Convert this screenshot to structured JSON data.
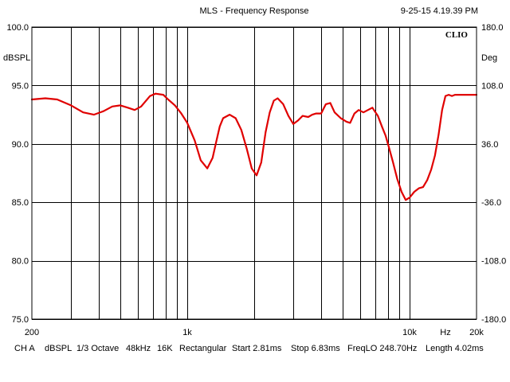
{
  "header": {
    "title": "MLS - Frequency Response",
    "timestamp": "9-25-15 4.19.39 PM"
  },
  "footer": {
    "items": [
      "CH A",
      "dBSPL",
      "1/3 Octave",
      "48kHz",
      "16K",
      "Rectangular",
      "Start 2.81ms",
      "Stop 6.83ms",
      "FreqLO 248.70Hz",
      "Length 4.02ms"
    ]
  },
  "logo_text": "CLIO",
  "colors": {
    "curve": "#e00000",
    "grid": "#000000",
    "background": "#ffffff"
  },
  "chart_data": {
    "type": "line",
    "x_scale": "log",
    "xlim": [
      200,
      20000
    ],
    "ylim": [
      75,
      100
    ],
    "y2lim": [
      -180,
      180
    ],
    "ylabel": "dBSPL",
    "y2label": "Deg",
    "grid": true,
    "x_tick_labels": [
      {
        "value": 200,
        "label": "200"
      },
      {
        "value": 1000,
        "label": "1k"
      },
      {
        "value": 10000,
        "label": "10k"
      },
      {
        "value": 14500,
        "label": "Hz"
      },
      {
        "value": 20000,
        "label": "20k"
      }
    ],
    "y_tick_labels": [
      "100.0",
      "95.0",
      "90.0",
      "85.0",
      "80.0",
      "75.0"
    ],
    "y_tick_values": [
      100,
      95,
      90,
      85,
      80,
      75
    ],
    "y2_tick_labels": [
      "180.0",
      "108.0",
      "36.0",
      "-36.0",
      "-108.0",
      "-180.0"
    ],
    "series": [
      {
        "color": "#e00000",
        "x": [
          200,
          230,
          260,
          300,
          340,
          380,
          420,
          460,
          500,
          540,
          580,
          620,
          680,
          720,
          780,
          820,
          880,
          940,
          1000,
          1080,
          1150,
          1230,
          1300,
          1350,
          1400,
          1450,
          1550,
          1650,
          1750,
          1850,
          1950,
          2050,
          2150,
          2250,
          2350,
          2450,
          2550,
          2700,
          2850,
          3000,
          3150,
          3300,
          3500,
          3650,
          3800,
          4000,
          4200,
          4400,
          4600,
          4900,
          5200,
          5400,
          5650,
          5900,
          6200,
          6500,
          6800,
          7200,
          7500,
          7800,
          8100,
          8400,
          8800,
          9200,
          9600,
          10000,
          10500,
          11000,
          11500,
          12000,
          12500,
          13000,
          13500,
          14000,
          14500,
          15000,
          15500,
          16000,
          16500,
          17000,
          17500,
          18000,
          18500,
          19200,
          20000
        ],
        "y": [
          93.8,
          93.9,
          93.8,
          93.3,
          92.7,
          92.5,
          92.8,
          93.2,
          93.3,
          93.1,
          92.9,
          93.2,
          94.1,
          94.3,
          94.2,
          93.8,
          93.3,
          92.6,
          91.8,
          90.3,
          88.6,
          87.9,
          88.8,
          90.2,
          91.5,
          92.2,
          92.5,
          92.2,
          91.2,
          89.6,
          87.9,
          87.3,
          88.4,
          91.0,
          92.7,
          93.7,
          93.9,
          93.4,
          92.4,
          91.7,
          92.0,
          92.4,
          92.3,
          92.5,
          92.6,
          92.6,
          93.4,
          93.5,
          92.7,
          92.2,
          91.9,
          91.8,
          92.6,
          92.9,
          92.7,
          92.9,
          93.1,
          92.4,
          91.5,
          90.7,
          89.6,
          88.5,
          87.0,
          85.9,
          85.2,
          85.4,
          85.9,
          86.2,
          86.3,
          86.9,
          87.8,
          89.0,
          90.8,
          92.9,
          94.1,
          94.2,
          94.1,
          94.2,
          94.2,
          94.2,
          94.2,
          94.2,
          94.2,
          94.2,
          94.2
        ]
      }
    ]
  }
}
